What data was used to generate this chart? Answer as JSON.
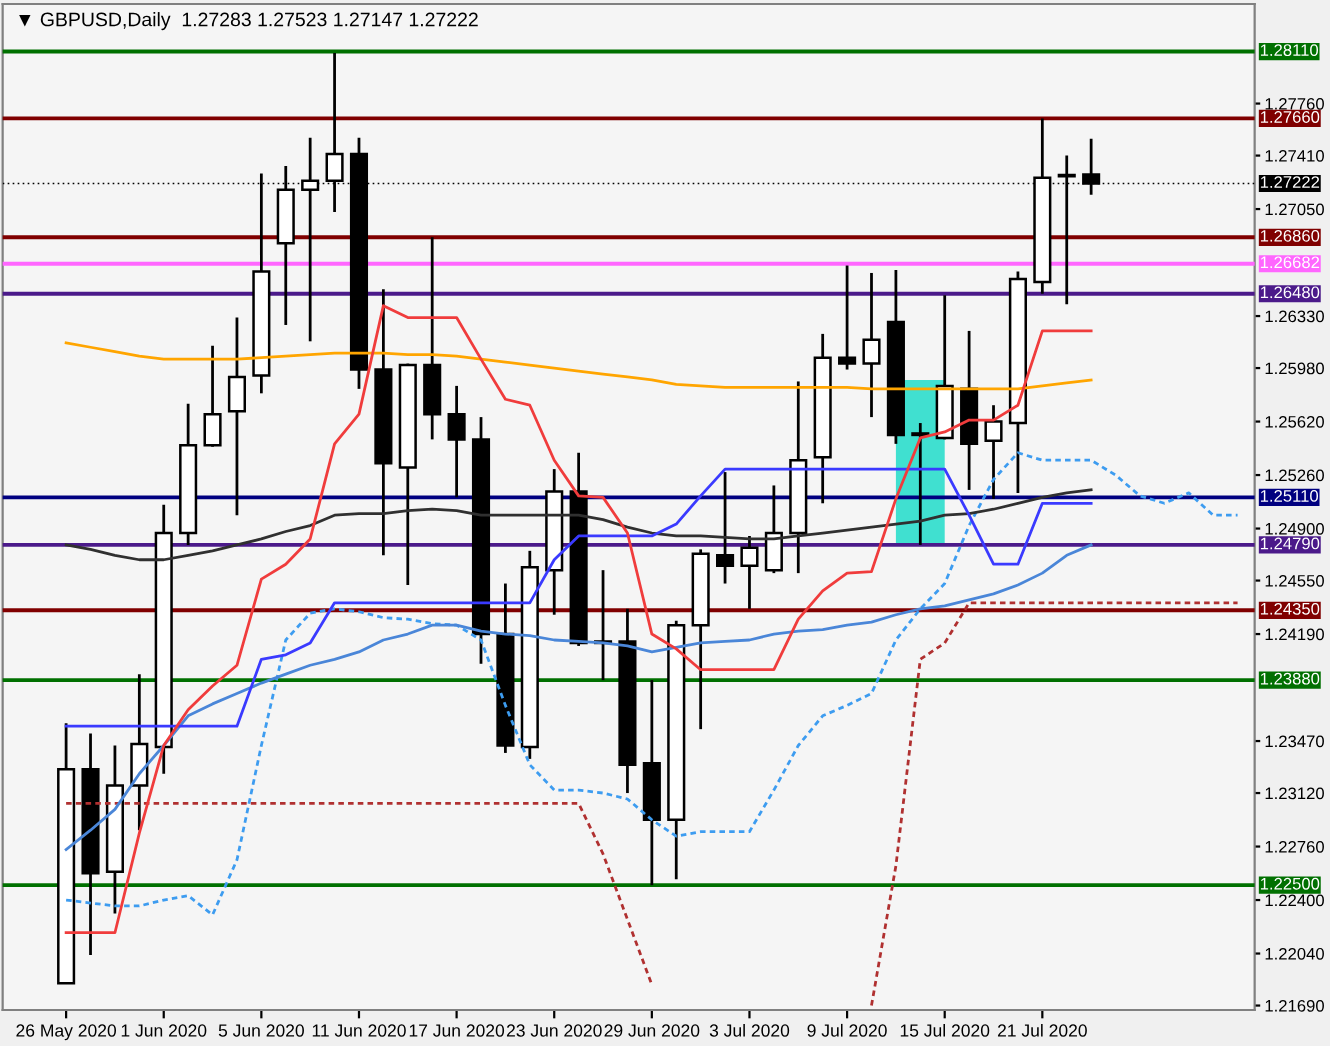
{
  "chart_data": {
    "type": "candlestick",
    "title": "▼ GBPUSD,Daily  1.27283 1.27523 1.27147 1.27222",
    "categories": [
      "26 May 2020",
      null,
      null,
      null,
      "1 Jun 2020",
      null,
      null,
      null,
      "5 Jun 2020",
      null,
      null,
      null,
      "11 Jun 2020",
      null,
      null,
      null,
      "17 Jun 2020",
      null,
      null,
      null,
      "23 Jun 2020",
      null,
      null,
      null,
      "29 Jun 2020",
      null,
      null,
      null,
      "3 Jul 2020",
      null,
      null,
      null,
      "9 Jul 2020",
      null,
      null,
      null,
      "15 Jul 2020",
      null,
      null,
      null,
      "21 Jul 2020",
      null,
      null,
      null,
      null,
      null,
      null,
      null,
      null
    ],
    "ohlc": [
      [
        1.2184,
        1.2359,
        1.2184,
        1.2328
      ],
      [
        1.2328,
        1.2352,
        1.2203,
        1.2258
      ],
      [
        1.2259,
        1.2344,
        1.2231,
        1.2317
      ],
      [
        1.2317,
        1.2392,
        1.2287,
        1.2345
      ],
      [
        1.2343,
        1.2506,
        1.2325,
        1.2487
      ],
      [
        1.2487,
        1.2574,
        1.2479,
        1.2546
      ],
      [
        1.2546,
        1.2613,
        1.2545,
        1.2567
      ],
      [
        1.2569,
        1.2632,
        1.2499,
        1.2592
      ],
      [
        1.2593,
        1.2729,
        1.2581,
        1.2663
      ],
      [
        1.2682,
        1.2734,
        1.2627,
        1.2718
      ],
      [
        1.2718,
        1.2753,
        1.2616,
        1.2724
      ],
      [
        1.2724,
        1.281,
        1.2703,
        1.2742
      ],
      [
        1.2742,
        1.2753,
        1.2584,
        1.2597
      ],
      [
        1.2597,
        1.2651,
        1.2472,
        1.2534
      ],
      [
        1.2531,
        1.2601,
        1.2452,
        1.26
      ],
      [
        1.26,
        1.2686,
        1.255,
        1.2567
      ],
      [
        1.2567,
        1.2586,
        1.2511,
        1.255
      ],
      [
        1.255,
        1.2565,
        1.2399,
        1.2419
      ],
      [
        1.2419,
        1.2453,
        1.2339,
        1.2344
      ],
      [
        1.2343,
        1.2475,
        1.2335,
        1.2464
      ],
      [
        1.2462,
        1.253,
        1.2432,
        1.2515
      ],
      [
        1.2515,
        1.2541,
        1.2411,
        1.2413
      ],
      [
        1.2413,
        1.2462,
        1.2388,
        1.2414
      ],
      [
        1.2414,
        1.2436,
        1.2312,
        1.2331
      ],
      [
        1.2332,
        1.2388,
        1.225,
        1.2294
      ],
      [
        1.2294,
        1.2428,
        1.2254,
        1.2425
      ],
      [
        1.2425,
        1.2476,
        1.2355,
        1.2473
      ],
      [
        1.2472,
        1.2528,
        1.2453,
        1.2465
      ],
      [
        1.2465,
        1.2485,
        1.2436,
        1.2477
      ],
      [
        1.2462,
        1.2519,
        1.246,
        1.2487
      ],
      [
        1.2487,
        1.2589,
        1.246,
        1.2536
      ],
      [
        1.2538,
        1.2621,
        1.2507,
        1.2605
      ],
      [
        1.2605,
        1.2667,
        1.2597,
        1.2601
      ],
      [
        1.2601,
        1.2662,
        1.2565,
        1.2617
      ],
      [
        1.2629,
        1.2664,
        1.2547,
        1.2553
      ],
      [
        1.2553,
        1.2561,
        1.2479,
        1.2554
      ],
      [
        1.2551,
        1.2647,
        1.255,
        1.2586
      ],
      [
        1.2584,
        1.2623,
        1.2516,
        1.2547
      ],
      [
        1.2549,
        1.2573,
        1.251,
        1.2562
      ],
      [
        1.2561,
        1.2663,
        1.2514,
        1.2658
      ],
      [
        1.2656,
        1.2766,
        1.2648,
        1.2726
      ],
      [
        1.2727,
        1.2741,
        1.2641,
        1.2728
      ],
      [
        1.27283,
        1.27523,
        1.27147,
        1.27222
      ],
      null,
      null,
      null,
      null,
      null,
      null
    ],
    "series": [
      {
        "type": "bar",
        "color": "#40e0d0",
        "values": [
          null,
          null,
          null,
          null,
          null,
          null,
          null,
          null,
          null,
          null,
          null,
          null,
          null,
          null,
          null,
          null,
          null,
          null,
          null,
          null,
          null,
          null,
          null,
          null,
          null,
          null,
          null,
          null,
          null,
          null,
          null,
          null,
          null,
          null,
          null,
          0.0111,
          null,
          null,
          null,
          null,
          null,
          null,
          null,
          null,
          null,
          null,
          null,
          null,
          null
        ],
        "base": [
          null,
          null,
          null,
          null,
          null,
          null,
          null,
          null,
          null,
          null,
          null,
          null,
          null,
          null,
          null,
          null,
          null,
          null,
          null,
          null,
          null,
          null,
          null,
          null,
          null,
          null,
          null,
          null,
          null,
          null,
          null,
          null,
          null,
          null,
          null,
          1.2479,
          null,
          null,
          null,
          null,
          null,
          null,
          null,
          null,
          null,
          null,
          null,
          null,
          null
        ]
      },
      {
        "type": "line",
        "color": "#3d9cf0",
        "line_style": "dashed",
        "values": [
          1.224,
          1.2238,
          1.2236,
          1.2236,
          1.224,
          1.2243,
          1.223,
          1.2267,
          1.2344,
          1.2415,
          1.2433,
          1.2436,
          1.2434,
          1.243,
          1.2429,
          1.2426,
          1.2425,
          1.2415,
          1.2371,
          1.2331,
          1.2314,
          1.2314,
          1.2312,
          1.2308,
          1.2294,
          1.2283,
          1.2286,
          1.2286,
          1.2286,
          1.2314,
          1.2344,
          1.2364,
          1.2371,
          1.2379,
          1.2415,
          1.2436,
          1.2453,
          1.2492,
          1.2523,
          1.2541,
          1.2536,
          1.2536,
          1.2536,
          1.2526,
          1.2512,
          1.2507,
          1.2514,
          1.2499,
          1.2499
        ]
      },
      {
        "type": "line",
        "color": "#b03030",
        "line_style": "dashed",
        "values": [
          1.2305,
          1.2305,
          1.2305,
          1.2305,
          1.2305,
          1.2305,
          1.2305,
          1.2305,
          1.2305,
          1.2305,
          1.2305,
          1.2305,
          1.2305,
          1.2305,
          1.2305,
          1.2305,
          1.2305,
          1.2305,
          1.2305,
          1.2305,
          1.2305,
          1.2305,
          1.2271,
          1.2227,
          1.2183,
          null,
          null,
          null,
          null,
          null,
          null,
          null,
          null,
          1.2169,
          1.2263,
          1.2402,
          1.2413,
          1.244,
          1.244,
          1.244,
          1.244,
          1.244,
          1.244,
          1.244,
          1.244,
          1.244,
          1.244,
          1.244,
          1.244
        ]
      },
      {
        "type": "line",
        "color": "#4a86d8",
        "line_style": "solid",
        "values": [
          1.2274,
          1.2287,
          1.2301,
          1.2325,
          1.2344,
          1.2364,
          1.2372,
          1.2379,
          1.2386,
          1.2392,
          1.2398,
          1.2402,
          1.2407,
          1.2415,
          1.2419,
          1.2425,
          1.2425,
          1.2421,
          1.2419,
          1.2418,
          1.2415,
          1.2414,
          1.2413,
          1.2411,
          1.2407,
          1.241,
          1.2413,
          1.2414,
          1.2415,
          1.2419,
          1.2421,
          1.2422,
          1.2425,
          1.2427,
          1.2432,
          1.2436,
          1.2438,
          1.2442,
          1.2446,
          1.2452,
          1.246,
          1.2472,
          1.2479,
          null,
          null,
          null,
          null,
          null,
          null
        ]
      },
      {
        "type": "line",
        "color": "#ffa500",
        "line_style": "solid",
        "values": [
          1.2615,
          1.2612,
          1.2609,
          1.2606,
          1.2604,
          1.2604,
          1.2604,
          1.2604,
          1.2605,
          1.2606,
          1.2607,
          1.2608,
          1.2608,
          1.2608,
          1.2607,
          1.2607,
          1.2606,
          1.2604,
          1.2602,
          1.26,
          1.2598,
          1.2596,
          1.2594,
          1.2592,
          1.259,
          1.2587,
          1.2586,
          1.2585,
          1.2585,
          1.2585,
          1.2585,
          1.2585,
          1.2585,
          1.2584,
          1.2584,
          1.2584,
          1.2584,
          1.2584,
          1.2584,
          1.2584,
          1.2586,
          1.2588,
          1.259,
          null,
          null,
          null,
          null,
          null,
          null
        ]
      },
      {
        "type": "line",
        "color": "#303030",
        "line_style": "solid",
        "values": [
          1.2479,
          1.2476,
          1.2472,
          1.2469,
          1.2469,
          1.2472,
          1.2475,
          1.2479,
          1.2483,
          1.2488,
          1.2492,
          1.2499,
          1.25,
          1.25,
          1.2502,
          1.2503,
          1.2502,
          1.2499,
          1.2499,
          1.2499,
          1.2499,
          1.2499,
          1.2496,
          1.2491,
          1.2487,
          1.2485,
          1.2485,
          1.2484,
          1.2483,
          1.2483,
          1.2485,
          1.2487,
          1.2489,
          1.2491,
          1.2493,
          1.2495,
          1.2499,
          1.25,
          1.2503,
          1.2507,
          1.2511,
          1.2514,
          1.2516,
          null,
          null,
          null,
          null,
          null,
          null
        ]
      },
      {
        "type": "line",
        "color": "#3a3aff",
        "line_style": "solid",
        "values": [
          1.2357,
          1.2357,
          1.2357,
          1.2357,
          1.2357,
          1.2357,
          1.2357,
          1.2357,
          1.2402,
          1.2405,
          1.2413,
          1.244,
          1.244,
          1.244,
          1.244,
          1.244,
          1.244,
          1.244,
          1.244,
          1.244,
          1.2469,
          1.2485,
          1.2485,
          1.2485,
          1.2485,
          1.2493,
          1.2512,
          1.253,
          1.253,
          1.253,
          1.253,
          1.253,
          1.253,
          1.253,
          1.253,
          1.253,
          1.253,
          1.2499,
          1.2466,
          1.2466,
          1.2507,
          1.2507,
          1.2507,
          null,
          null,
          null,
          null,
          null,
          null
        ]
      },
      {
        "type": "line",
        "color": "#f03c3c",
        "line_style": "solid",
        "values": [
          1.2218,
          1.2218,
          1.2218,
          1.2285,
          1.2344,
          1.2368,
          1.2384,
          1.2398,
          1.2456,
          1.2466,
          1.2483,
          1.2547,
          1.2567,
          1.264,
          1.2632,
          1.2632,
          1.2632,
          1.2604,
          1.2577,
          1.2573,
          1.2536,
          1.2512,
          1.2511,
          1.2487,
          1.2419,
          1.2409,
          1.2395,
          1.2395,
          1.2395,
          1.2395,
          1.2429,
          1.2448,
          1.246,
          1.2461,
          1.251,
          1.2551,
          1.2555,
          1.2563,
          1.2563,
          1.2573,
          1.2623,
          1.2623,
          1.2623,
          null,
          null,
          null,
          null,
          null,
          null
        ]
      }
    ],
    "ylim": [
      1.2166,
      1.2843
    ],
    "yticks": [
      {
        "value": 1.2776,
        "label": "1.27760"
      },
      {
        "value": 1.2741,
        "label": "1.27410"
      },
      {
        "value": 1.2705,
        "label": "1.27050"
      },
      {
        "value": 1.2633,
        "label": "1.26330"
      },
      {
        "value": 1.2598,
        "label": "1.25980"
      },
      {
        "value": 1.2562,
        "label": "1.25620"
      },
      {
        "value": 1.2526,
        "label": "1.25260"
      },
      {
        "value": 1.249,
        "label": "1.24900"
      },
      {
        "value": 1.2455,
        "label": "1.24550"
      },
      {
        "value": 1.2419,
        "label": "1.24190"
      },
      {
        "value": 1.2347,
        "label": "1.23470"
      },
      {
        "value": 1.2312,
        "label": "1.23120"
      },
      {
        "value": 1.2276,
        "label": "1.22760"
      },
      {
        "value": 1.224,
        "label": "1.22400"
      },
      {
        "value": 1.2204,
        "label": "1.22040"
      },
      {
        "value": 1.2169,
        "label": "1.21690"
      }
    ],
    "ref_lines": [
      {
        "axis": "y",
        "value": 1.2811,
        "label": "1.28110",
        "color": "#007000"
      },
      {
        "axis": "y",
        "value": 1.2766,
        "label": "1.27660",
        "color": "#800000"
      },
      {
        "axis": "y",
        "value": 1.27222,
        "label": "1.27222",
        "color": "#000000",
        "line_style": "dotted"
      },
      {
        "axis": "y",
        "value": 1.2686,
        "label": "1.26860",
        "color": "#800000"
      },
      {
        "axis": "y",
        "value": 1.26682,
        "label": "1.26682",
        "color": "#ff66ff"
      },
      {
        "axis": "y",
        "value": 1.2648,
        "label": "1.26480",
        "color": "#4b1a8a"
      },
      {
        "axis": "y",
        "value": 1.2511,
        "label": "1.25110",
        "color": "#000080"
      },
      {
        "axis": "y",
        "value": 1.2479,
        "label": "1.24790",
        "color": "#4b1a8a"
      },
      {
        "axis": "y",
        "value": 1.2435,
        "label": "1.24350",
        "color": "#800000"
      },
      {
        "axis": "y",
        "value": 1.2388,
        "label": "1.23880",
        "color": "#007000"
      },
      {
        "axis": "y",
        "value": 1.225,
        "label": "1.22500",
        "color": "#007000"
      }
    ]
  }
}
